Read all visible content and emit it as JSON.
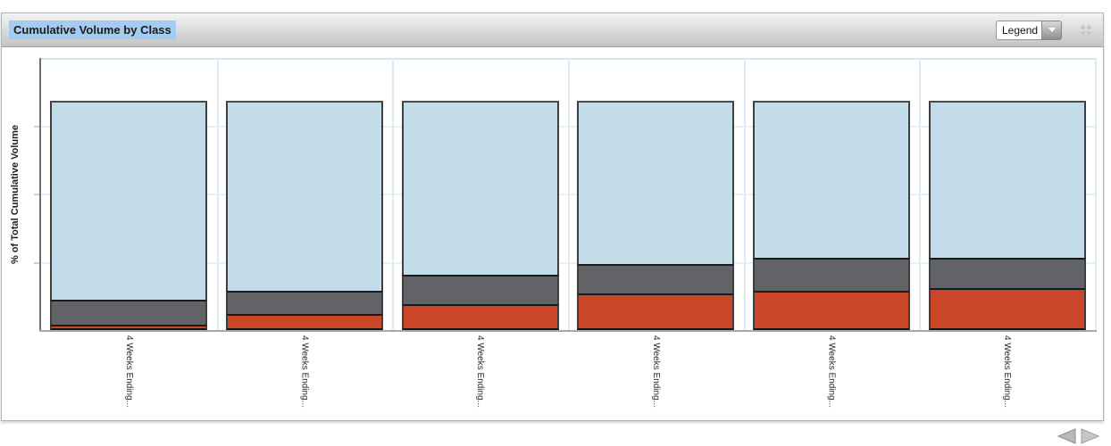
{
  "panel": {
    "title": "Cumulative Volume by Class"
  },
  "header": {
    "legend_dropdown": {
      "value": "Legend",
      "caret_icon": "chevron-down-icon"
    },
    "fullscreen_icon": "collapse-arrows-icon"
  },
  "chart_data": {
    "type": "bar",
    "stacked": true,
    "stacking": "percent",
    "title": "Cumulative Volume by Class",
    "ylabel": "% of Total Cumulative Volume",
    "xlabel": "",
    "categories": [
      "4 Weeks Ending...",
      "4 Weeks Ending...",
      "4 Weeks Ending...",
      "4 Weeks Ending...",
      "4 Weeks Ending...",
      "4 Weeks Ending..."
    ],
    "series": [
      {
        "name": "red",
        "color": "#cb4628",
        "values": [
          2.3,
          7.0,
          11.3,
          16.0,
          17.2,
          18.4
        ]
      },
      {
        "name": "gray",
        "color": "#616366",
        "values": [
          10.9,
          10.2,
          12.9,
          12.9,
          14.4,
          13.3
        ]
      },
      {
        "name": "light-blue",
        "color": "#c2dcea",
        "values": [
          86.8,
          82.8,
          75.8,
          71.1,
          68.4,
          68.3
        ]
      }
    ],
    "ylim": [
      0,
      100
    ],
    "y_axis_tick_labels_visible": false,
    "grid": true,
    "legend_position": "collapsed"
  },
  "pagination": {
    "prev_icon": "left-arrow-icon",
    "next_icon": "right-arrow-icon"
  }
}
